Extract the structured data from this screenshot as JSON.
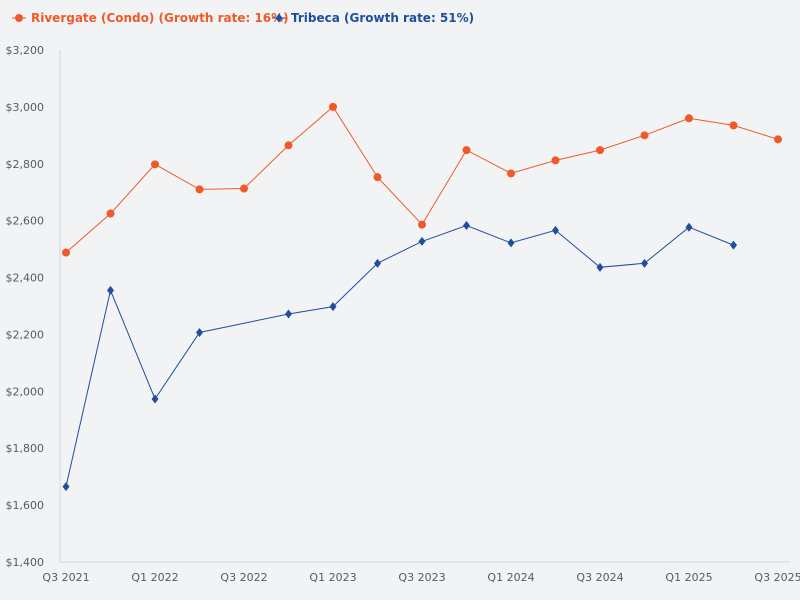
{
  "chart_data": {
    "type": "line",
    "title": "",
    "xlabel": "",
    "ylabel": "",
    "ylim": [
      1400,
      3200
    ],
    "y_ticks": [
      1400,
      1600,
      1800,
      2000,
      2200,
      2400,
      2600,
      2800,
      3000,
      3200
    ],
    "y_tick_labels": [
      "$1,400",
      "$1,600",
      "$1,800",
      "$2,000",
      "$2,200",
      "$2,400",
      "$2,600",
      "$2,800",
      "$3,000",
      "$3,200"
    ],
    "categories": [
      "Q3 2021",
      "Q4 2021",
      "Q1 2022",
      "Q2 2022",
      "Q3 2022",
      "Q4 2022",
      "Q1 2023",
      "Q2 2023",
      "Q3 2023",
      "Q4 2023",
      "Q1 2024",
      "Q2 2024",
      "Q3 2024",
      "Q4 2024",
      "Q1 2025",
      "Q2 2025",
      "Q3 2025"
    ],
    "x_tick_labels": [
      "Q3 2021",
      "Q1 2022",
      "Q3 2022",
      "Q1 2023",
      "Q3 2023",
      "Q1 2024",
      "Q3 2024",
      "Q1 2025",
      "Q3 2025"
    ],
    "legend_position": "top-left",
    "grid": false,
    "series": [
      {
        "name": "Rivergate (Condo) (Growth rate: 16%)",
        "color": "#f05a28",
        "marker": "circle",
        "values": [
          2488,
          2625,
          2798,
          2710,
          2713,
          2865,
          3000,
          2753,
          2586,
          2848,
          2766,
          2812,
          2848,
          2900,
          2960,
          2935,
          2886
        ]
      },
      {
        "name": "Tribeca (Growth rate: 51%)",
        "color": "#1f4e9c",
        "marker": "diamond",
        "values": [
          1665,
          2355,
          1973,
          2207,
          null,
          2272,
          2298,
          2450,
          2527,
          2583,
          2522,
          2566,
          2436,
          2450,
          2577,
          2514,
          null
        ]
      }
    ]
  }
}
